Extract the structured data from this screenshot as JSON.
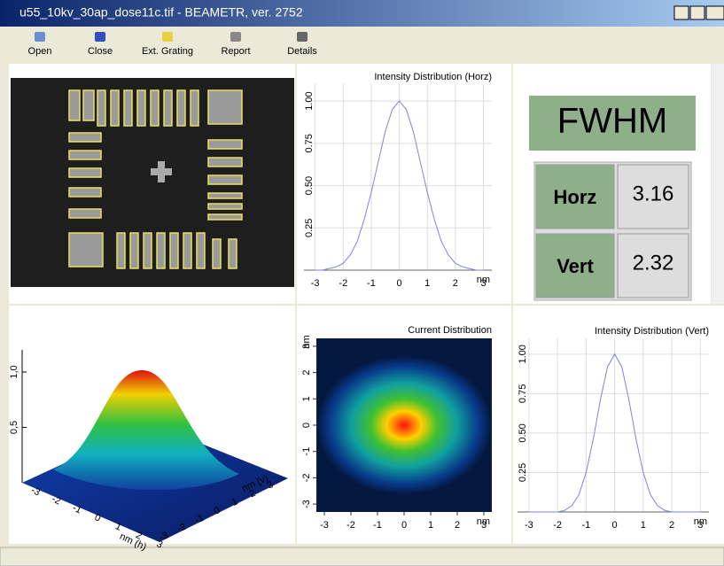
{
  "window": {
    "title": "u55_10kv_30ap_dose11c.tif - BEAMETR, ver. 2752"
  },
  "toolbar": {
    "buttons": [
      "Open",
      "Close",
      "Ext. Grating",
      "Report",
      "Details"
    ]
  },
  "fwhm": {
    "title": "FWHM",
    "rows": [
      {
        "label": "Horz",
        "value": 3.16
      },
      {
        "label": "Vert",
        "value": 2.32
      }
    ]
  },
  "surface": {
    "zticks": [
      {
        "value": 1,
        "label": "1,0"
      },
      {
        "value": 0.5,
        "label": "0,5"
      }
    ],
    "hticks": [
      -3,
      -2,
      -1,
      0,
      1,
      2,
      3
    ],
    "vticks": [
      -3,
      -2,
      -1,
      0,
      1,
      2,
      3
    ],
    "h_label": "nm (h)",
    "v_label": "nm (v)"
  },
  "charts": {
    "horz": {
      "type": "line",
      "title": "Intensity Distribution (Horz)",
      "x_unit": "nm",
      "color": "#8080e0",
      "x": [
        -3,
        -2.75,
        -2.5,
        -2.25,
        -2,
        -1.75,
        -1.5,
        -1.25,
        -1,
        -0.75,
        -0.5,
        -0.25,
        0,
        0.25,
        0.5,
        0.75,
        1,
        1.25,
        1.5,
        1.75,
        2,
        2.25,
        2.5,
        2.75,
        3
      ],
      "values": [
        0,
        0,
        0.01,
        0.02,
        0.04,
        0.09,
        0.17,
        0.3,
        0.46,
        0.64,
        0.82,
        0.95,
        1,
        0.95,
        0.82,
        0.64,
        0.46,
        0.3,
        0.17,
        0.09,
        0.04,
        0.02,
        0.01,
        0,
        0
      ],
      "xlim": [
        -3.4,
        3.3
      ],
      "ylim": [
        0,
        1.1
      ],
      "xticks": [
        -3,
        -2,
        -1,
        0,
        1,
        2,
        3
      ],
      "yticks": [
        0.25,
        {
          "value": 0.5,
          "label": "0.50"
        },
        0.75,
        {
          "value": 1,
          "label": "1.00"
        }
      ],
      "grid": true
    },
    "vert": {
      "type": "line",
      "title": "Intensity Distribution (Vert)",
      "x_unit": "nm",
      "color": "#8080e0",
      "x": [
        -3,
        -2.75,
        -2.5,
        -2.25,
        -2,
        -1.75,
        -1.5,
        -1.25,
        -1,
        -0.75,
        -0.5,
        -0.25,
        0,
        0.25,
        0.5,
        0.75,
        1,
        1.25,
        1.5,
        1.75,
        2,
        2.25,
        2.5,
        2.75,
        3
      ],
      "values": [
        0,
        0,
        0,
        0,
        0,
        0.01,
        0.04,
        0.11,
        0.25,
        0.46,
        0.71,
        0.92,
        1,
        0.92,
        0.71,
        0.46,
        0.25,
        0.11,
        0.04,
        0.01,
        0,
        0,
        0,
        0,
        0
      ],
      "xlim": [
        -3.4,
        3.3
      ],
      "ylim": [
        0,
        1.1
      ],
      "xticks": [
        -3,
        -2,
        -1,
        0,
        1,
        2,
        3
      ],
      "yticks": [
        0.25,
        {
          "value": 0.5,
          "label": "0.50"
        },
        0.75,
        {
          "value": 1,
          "label": "1.00"
        }
      ],
      "grid": true
    },
    "current": {
      "type": "heatmap",
      "title": "Current Distribution",
      "unit": "nm",
      "xlim": [
        -3.3,
        3.3
      ],
      "ylim": [
        -3.3,
        3.3
      ],
      "xticks": [
        -3,
        -2,
        -1,
        0,
        1,
        2,
        3
      ],
      "yticks": [
        -3,
        -2,
        -1,
        0,
        1,
        2,
        3
      ]
    }
  }
}
